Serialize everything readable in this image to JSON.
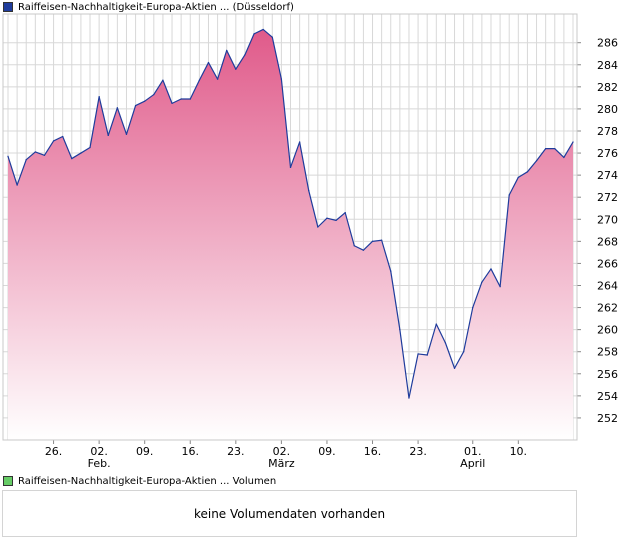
{
  "price_legend": {
    "label": "Raiffeisen-Nachhaltigkeit-Europa-Aktien ... (Düsseldorf)",
    "color": "#1f3c9c"
  },
  "volume_legend": {
    "label": "Raiffeisen-Nachhaltigkeit-Europa-Aktien ... Volumen",
    "color": "#66cc66"
  },
  "volume_message": "keine Volumendaten vorhanden",
  "chart_data": {
    "type": "area",
    "title": "Raiffeisen-Nachhaltigkeit-Europa-Aktien ... (Düsseldorf)",
    "xlabel": "",
    "ylabel": "",
    "ylim": [
      250,
      288.6
    ],
    "yticks": [
      252,
      254,
      256,
      258,
      260,
      262,
      264,
      266,
      268,
      270,
      272,
      274,
      276,
      278,
      280,
      282,
      284,
      286
    ],
    "x_ticks": [
      {
        "index": 5,
        "label": "26.",
        "sublabel": ""
      },
      {
        "index": 10,
        "label": "02.",
        "sublabel": "Feb."
      },
      {
        "index": 15,
        "label": "09.",
        "sublabel": ""
      },
      {
        "index": 20,
        "label": "16.",
        "sublabel": ""
      },
      {
        "index": 25,
        "label": "23.",
        "sublabel": ""
      },
      {
        "index": 30,
        "label": "02.",
        "sublabel": "März"
      },
      {
        "index": 35,
        "label": "09.",
        "sublabel": ""
      },
      {
        "index": 40,
        "label": "16.",
        "sublabel": ""
      },
      {
        "index": 45,
        "label": "23.",
        "sublabel": ""
      },
      {
        "index": 51,
        "label": "01.",
        "sublabel": "April"
      },
      {
        "index": 56,
        "label": "10.",
        "sublabel": ""
      }
    ],
    "colors": {
      "line": "#1f3c9c",
      "fill_top": "#e05a8a",
      "fill_bottom": "#ffffff",
      "grid": "#d8d8d8"
    },
    "series": [
      {
        "name": "Raiffeisen-Nachhaltigkeit-Europa-Aktien (Düsseldorf)",
        "values": [
          275.7,
          273.1,
          275.4,
          276.1,
          275.8,
          277.1,
          277.5,
          275.5,
          276.0,
          276.5,
          281.1,
          277.6,
          280.1,
          277.7,
          280.3,
          280.7,
          281.3,
          282.6,
          280.5,
          280.9,
          280.9,
          282.6,
          284.2,
          282.7,
          285.3,
          283.6,
          284.9,
          286.8,
          287.2,
          286.5,
          282.7,
          274.7,
          277.0,
          272.6,
          269.3,
          270.1,
          269.9,
          270.6,
          267.6,
          267.2,
          268.0,
          268.1,
          265.3,
          260.0,
          253.8,
          257.8,
          257.7,
          260.5,
          258.8,
          256.5,
          258.0,
          262.0,
          264.3,
          265.5,
          263.9,
          272.2,
          273.8,
          274.3,
          275.3,
          276.4,
          276.4,
          275.6,
          277.0
        ]
      }
    ]
  }
}
